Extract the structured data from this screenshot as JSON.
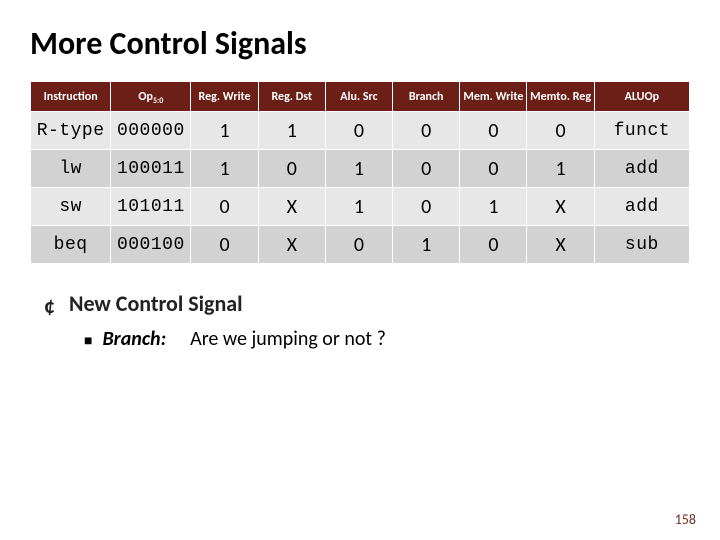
{
  "slide_title": "More Control Signals",
  "table": {
    "header_bg": "#6b1f17",
    "row_even_bg": "#e7e7e7",
    "row_odd_bg": "#d2d2d2",
    "columns": [
      {
        "key": "instr",
        "label": "Instruction",
        "cls": "col-instr"
      },
      {
        "key": "opcode",
        "label": "Op",
        "cls": "col-opcode",
        "sub": "5:0"
      },
      {
        "key": "regwrite",
        "label": "Reg. Write",
        "cls": "col-sig"
      },
      {
        "key": "regdst",
        "label": "Reg. Dst",
        "cls": "col-sig"
      },
      {
        "key": "alusrc",
        "label": "Alu. Src",
        "cls": "col-sig"
      },
      {
        "key": "branch",
        "label": "Branch",
        "cls": "col-sig"
      },
      {
        "key": "memwrite",
        "label": "Mem. Write",
        "cls": "col-sig"
      },
      {
        "key": "memtoreg",
        "label": "Memto. Reg",
        "cls": "col-sig"
      },
      {
        "key": "aluop",
        "label": "ALUOp",
        "cls": "col-aluop"
      }
    ],
    "rows": [
      {
        "instr": "R-type",
        "opcode": "000000",
        "regwrite": "1",
        "regdst": "1",
        "alusrc": "0",
        "branch": "0",
        "memwrite": "0",
        "memtoreg": "0",
        "aluop": "funct"
      },
      {
        "instr": "lw",
        "opcode": "100011",
        "regwrite": "1",
        "regdst": "0",
        "alusrc": "1",
        "branch": "0",
        "memwrite": "0",
        "memtoreg": "1",
        "aluop": "add"
      },
      {
        "instr": "sw",
        "opcode": "101011",
        "regwrite": "0",
        "regdst": "X",
        "alusrc": "1",
        "branch": "0",
        "memwrite": "1",
        "memtoreg": "X",
        "aluop": "add"
      },
      {
        "instr": "beq",
        "opcode": "000100",
        "regwrite": "0",
        "regdst": "X",
        "alusrc": "0",
        "branch": "1",
        "memwrite": "0",
        "memtoreg": "X",
        "aluop": "sub"
      }
    ]
  },
  "bullets": {
    "level1": "New Control Signal",
    "level2_label": "Branch:",
    "level2_text": "Are we jumping or not ?"
  },
  "page_number": "158"
}
